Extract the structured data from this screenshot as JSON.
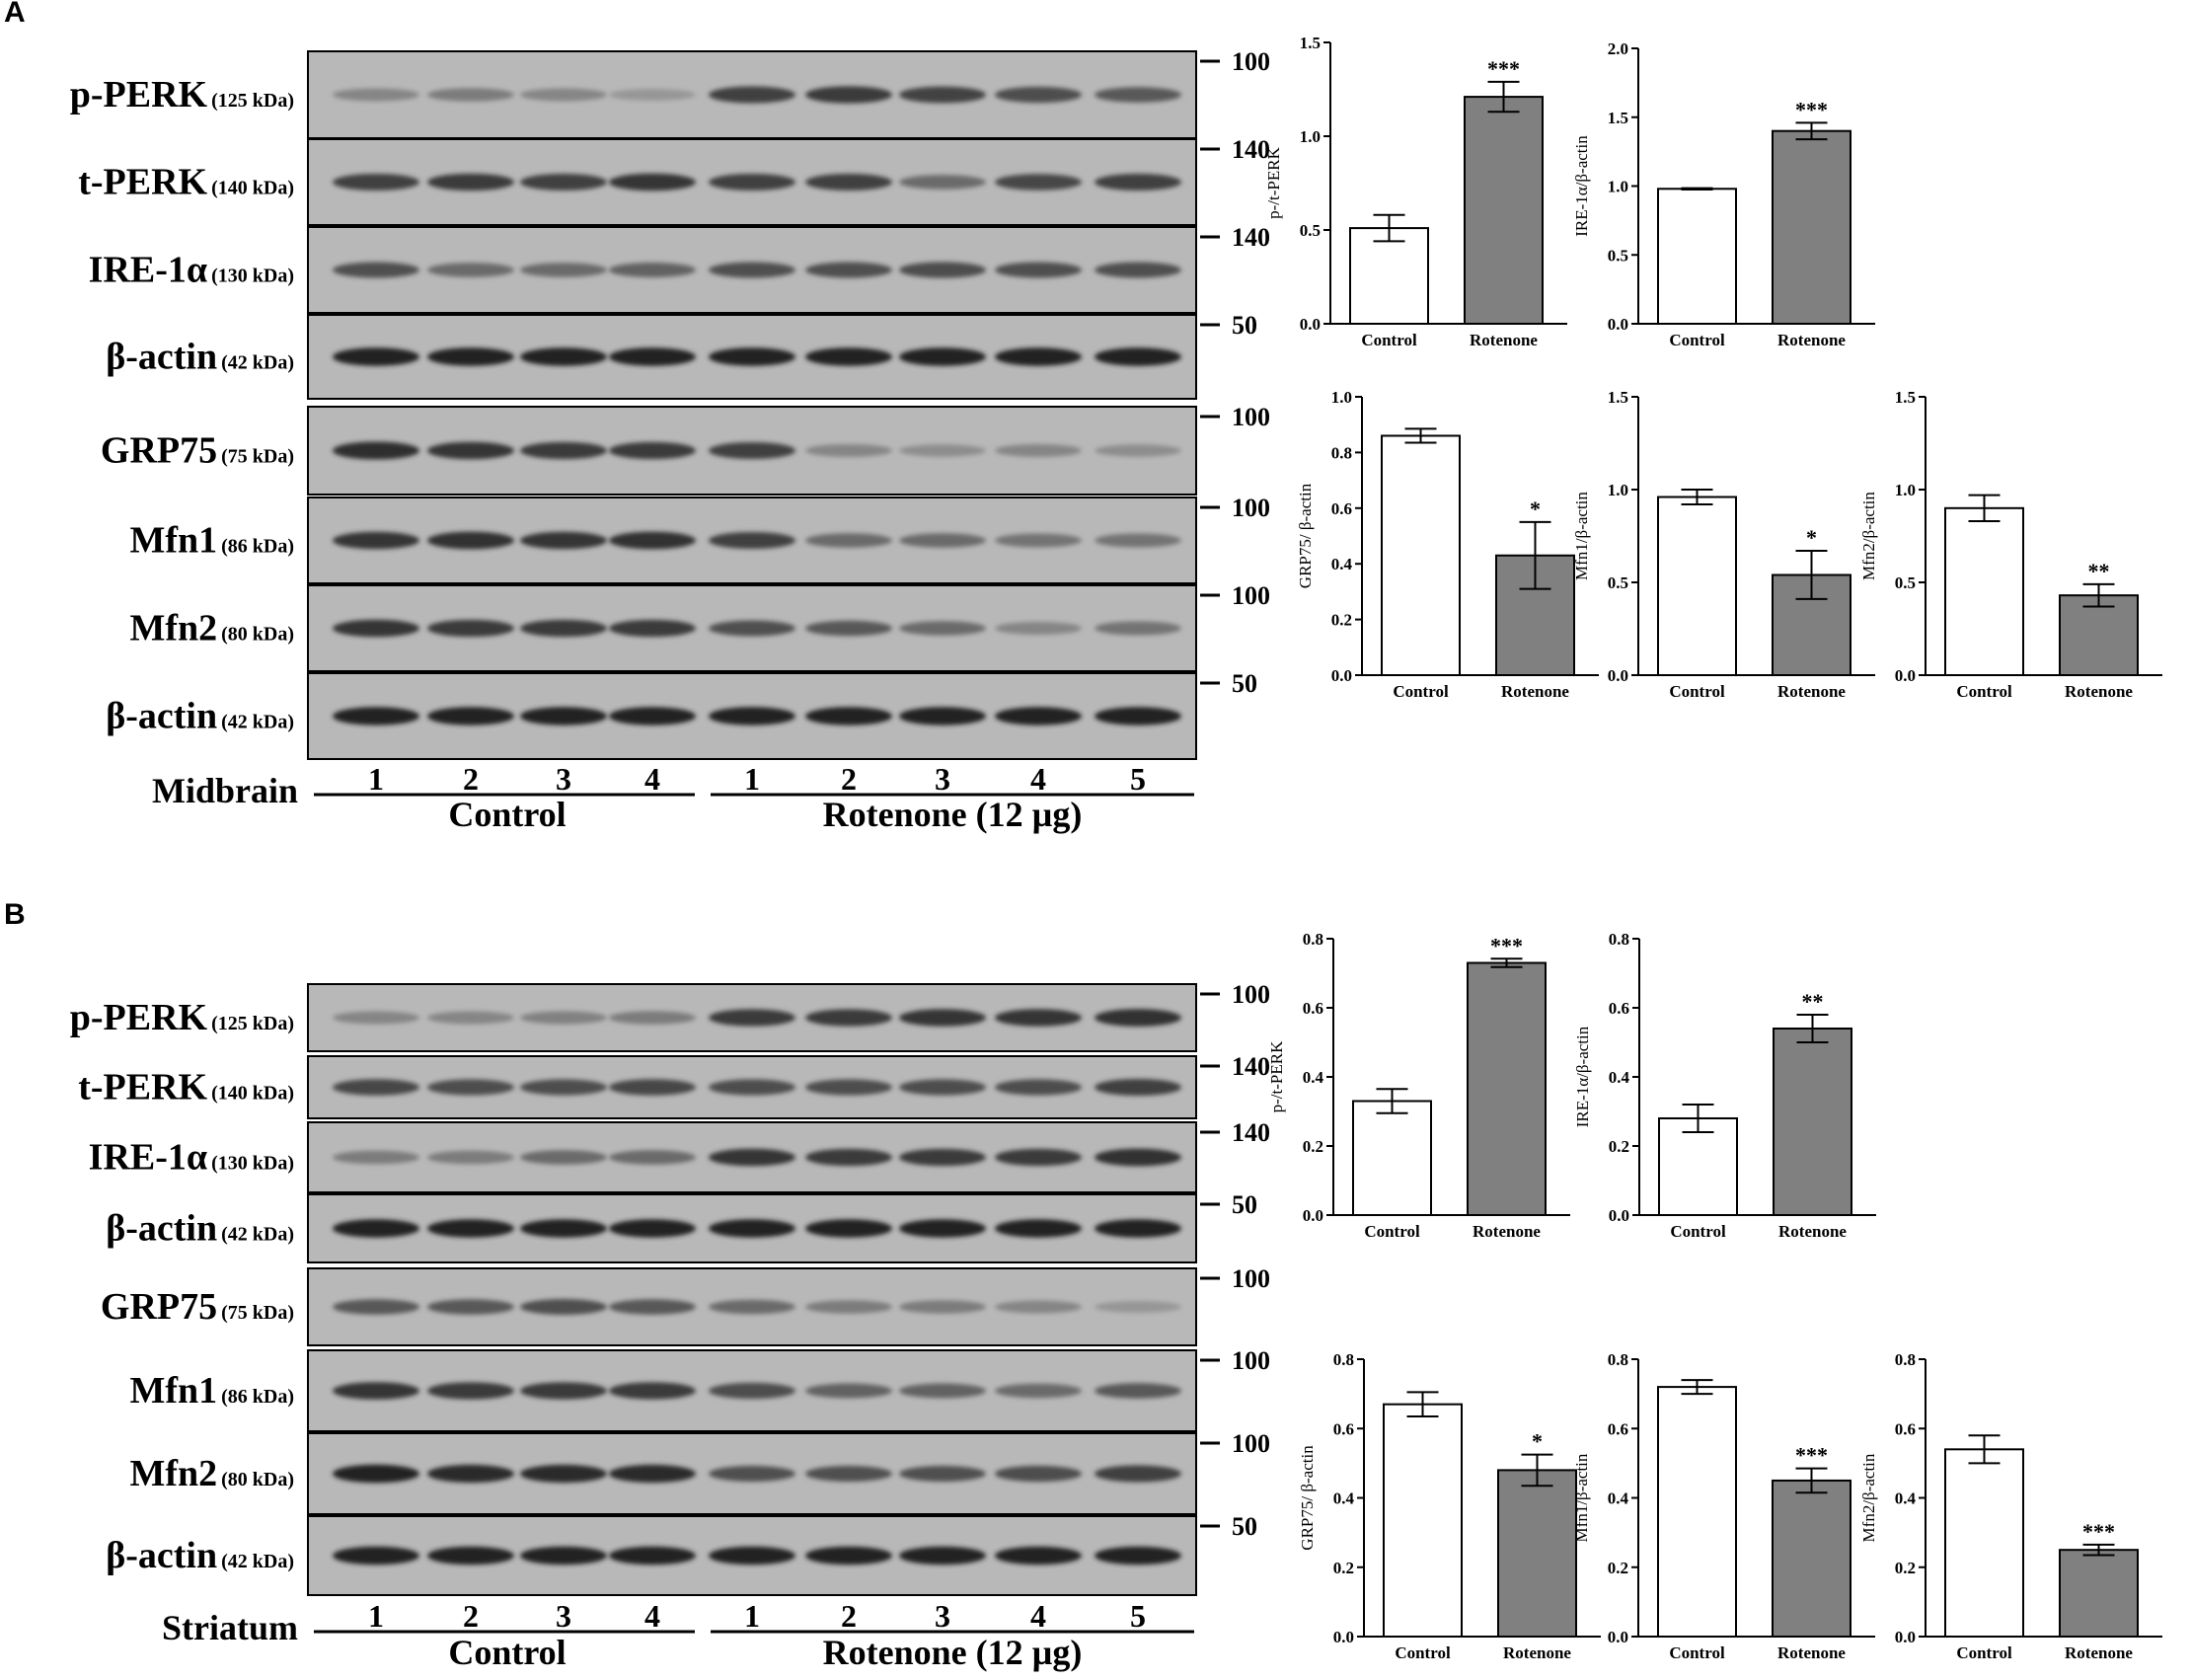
{
  "panels": [
    {
      "letter": "A",
      "region": "Midbrain",
      "groups": [
        "Control",
        "Rotenone (12 µg)"
      ],
      "lanes": [
        "1",
        "2",
        "3",
        "4",
        "1",
        "2",
        "3",
        "4",
        "5"
      ],
      "blots": [
        {
          "protein": "p-PERK",
          "kda": "(125 kDa)",
          "marker": "100",
          "intensity": [
            0.3,
            0.35,
            0.3,
            0.2,
            0.7,
            0.72,
            0.68,
            0.62,
            0.55
          ]
        },
        {
          "protein": "t-PERK",
          "kda": "(140 kDa)",
          "marker": "140",
          "intensity": [
            0.7,
            0.72,
            0.7,
            0.75,
            0.7,
            0.7,
            0.45,
            0.65,
            0.7
          ]
        },
        {
          "protein": "IRE-1α",
          "kda": "(130 kDa)",
          "marker": "140",
          "intensity": [
            0.6,
            0.45,
            0.45,
            0.5,
            0.6,
            0.6,
            0.62,
            0.6,
            0.6
          ]
        },
        {
          "protein": "β-actin",
          "kda": "(42 kDa)",
          "marker": "50",
          "intensity": [
            0.85,
            0.85,
            0.85,
            0.85,
            0.85,
            0.85,
            0.85,
            0.85,
            0.85
          ]
        },
        {
          "protein": "GRP75",
          "kda": "(75 kDa)",
          "marker": "100",
          "intensity": [
            0.8,
            0.75,
            0.72,
            0.72,
            0.7,
            0.3,
            0.25,
            0.3,
            0.25
          ]
        },
        {
          "protein": "Mfn1",
          "kda": "(86 kDa)",
          "marker": "100",
          "intensity": [
            0.75,
            0.78,
            0.75,
            0.78,
            0.7,
            0.45,
            0.45,
            0.4,
            0.4
          ]
        },
        {
          "protein": "Mfn2",
          "kda": "(80 kDa)",
          "marker": "100",
          "intensity": [
            0.75,
            0.72,
            0.72,
            0.72,
            0.6,
            0.55,
            0.45,
            0.3,
            0.4
          ]
        },
        {
          "protein": "β-actin",
          "kda": "(42 kDa)",
          "marker": "50",
          "intensity": [
            0.85,
            0.85,
            0.85,
            0.85,
            0.85,
            0.85,
            0.85,
            0.85,
            0.85
          ]
        }
      ]
    },
    {
      "letter": "B",
      "region": "Striatum",
      "groups": [
        "Control",
        "Rotenone (12 µg)"
      ],
      "lanes": [
        "1",
        "2",
        "3",
        "4",
        "1",
        "2",
        "3",
        "4",
        "5"
      ],
      "blots": [
        {
          "protein": "p-PERK",
          "kda": "(125 kDa)",
          "marker": "100",
          "intensity": [
            0.3,
            0.3,
            0.32,
            0.35,
            0.72,
            0.72,
            0.75,
            0.75,
            0.78
          ]
        },
        {
          "protein": "t-PERK",
          "kda": "(140 kDa)",
          "marker": "140",
          "intensity": [
            0.65,
            0.62,
            0.62,
            0.65,
            0.62,
            0.62,
            0.62,
            0.62,
            0.7
          ]
        },
        {
          "protein": "IRE-1α",
          "kda": "(130 kDa)",
          "marker": "140",
          "intensity": [
            0.35,
            0.35,
            0.45,
            0.45,
            0.75,
            0.72,
            0.72,
            0.72,
            0.78
          ]
        },
        {
          "protein": "β-actin",
          "kda": "(42 kDa)",
          "marker": "50",
          "intensity": [
            0.85,
            0.85,
            0.85,
            0.85,
            0.85,
            0.85,
            0.85,
            0.85,
            0.85
          ]
        },
        {
          "protein": "GRP75",
          "kda": "(75 kDa)",
          "marker": "100",
          "intensity": [
            0.55,
            0.55,
            0.6,
            0.55,
            0.45,
            0.35,
            0.35,
            0.3,
            0.2
          ]
        },
        {
          "protein": "Mfn1",
          "kda": "(86 kDa)",
          "marker": "100",
          "intensity": [
            0.75,
            0.72,
            0.72,
            0.72,
            0.62,
            0.5,
            0.5,
            0.45,
            0.55
          ]
        },
        {
          "protein": "Mfn2",
          "kda": "(80 kDa)",
          "marker": "100",
          "intensity": [
            0.85,
            0.82,
            0.82,
            0.82,
            0.6,
            0.6,
            0.6,
            0.62,
            0.7
          ]
        },
        {
          "protein": "β-actin",
          "kda": "(42 kDa)",
          "marker": "50",
          "intensity": [
            0.85,
            0.85,
            0.85,
            0.85,
            0.85,
            0.85,
            0.85,
            0.85,
            0.85
          ]
        }
      ]
    }
  ],
  "chart_data": [
    {
      "panel": "A",
      "type": "bar",
      "ylabel": "p-/t-PERK",
      "categories": [
        "Control",
        "Rotenone"
      ],
      "values": [
        0.51,
        1.21
      ],
      "errors": [
        0.07,
        0.08
      ],
      "ylim": [
        0,
        1.5
      ],
      "yticks": [
        "0.0",
        "0.5",
        "1.0",
        "1.5"
      ],
      "significance": "***",
      "colors": [
        "#ffffff",
        "#808080"
      ]
    },
    {
      "panel": "A",
      "type": "bar",
      "ylabel": "IRE-1α/β-actin",
      "categories": [
        "Control",
        "Rotenone"
      ],
      "values": [
        0.98,
        1.4
      ],
      "errors": [
        0.005,
        0.06
      ],
      "ylim": [
        0,
        2.0
      ],
      "yticks": [
        "0.0",
        "0.5",
        "1.0",
        "1.5",
        "2.0"
      ],
      "significance": "***",
      "colors": [
        "#ffffff",
        "#808080"
      ]
    },
    {
      "panel": "A",
      "type": "bar",
      "ylabel": "GRP75/ β-actin",
      "categories": [
        "Control",
        "Rotenone"
      ],
      "values": [
        0.86,
        0.43
      ],
      "errors": [
        0.025,
        0.12
      ],
      "ylim": [
        0,
        1.0
      ],
      "yticks": [
        "0.0",
        "0.2",
        "0.4",
        "0.6",
        "0.8",
        "1.0"
      ],
      "significance": "*",
      "colors": [
        "#ffffff",
        "#808080"
      ]
    },
    {
      "panel": "A",
      "type": "bar",
      "ylabel": "Mfn1/β-actin",
      "categories": [
        "Control",
        "Rotenone"
      ],
      "values": [
        0.96,
        0.54
      ],
      "errors": [
        0.04,
        0.13
      ],
      "ylim": [
        0,
        1.5
      ],
      "yticks": [
        "0.0",
        "0.5",
        "1.0",
        "1.5"
      ],
      "significance": "*",
      "colors": [
        "#ffffff",
        "#808080"
      ]
    },
    {
      "panel": "A",
      "type": "bar",
      "ylabel": "Mfn2/β-actin",
      "categories": [
        "Control",
        "Rotenone"
      ],
      "values": [
        0.9,
        0.43
      ],
      "errors": [
        0.07,
        0.06
      ],
      "ylim": [
        0,
        1.5
      ],
      "yticks": [
        "0.0",
        "0.5",
        "1.0",
        "1.5"
      ],
      "significance": "**",
      "colors": [
        "#ffffff",
        "#808080"
      ]
    },
    {
      "panel": "B",
      "type": "bar",
      "ylabel": "p-/t-PERK",
      "categories": [
        "Control",
        "Rotenone"
      ],
      "values": [
        0.33,
        0.73
      ],
      "errors": [
        0.035,
        0.012
      ],
      "ylim": [
        0,
        0.8
      ],
      "yticks": [
        "0.0",
        "0.2",
        "0.4",
        "0.6",
        "0.8"
      ],
      "significance": "***",
      "colors": [
        "#ffffff",
        "#808080"
      ]
    },
    {
      "panel": "B",
      "type": "bar",
      "ylabel": "IRE-1α/β-actin",
      "categories": [
        "Control",
        "Rotenone"
      ],
      "values": [
        0.28,
        0.54
      ],
      "errors": [
        0.04,
        0.04
      ],
      "ylim": [
        0,
        0.8
      ],
      "yticks": [
        "0.0",
        "0.2",
        "0.4",
        "0.6",
        "0.8"
      ],
      "significance": "**",
      "colors": [
        "#ffffff",
        "#808080"
      ]
    },
    {
      "panel": "B",
      "type": "bar",
      "ylabel": "GRP75/ β-actin",
      "categories": [
        "Control",
        "Rotenone"
      ],
      "values": [
        0.67,
        0.48
      ],
      "errors": [
        0.035,
        0.045
      ],
      "ylim": [
        0,
        0.8
      ],
      "yticks": [
        "0.0",
        "0.2",
        "0.4",
        "0.6",
        "0.8"
      ],
      "significance": "*",
      "colors": [
        "#ffffff",
        "#808080"
      ]
    },
    {
      "panel": "B",
      "type": "bar",
      "ylabel": "Mfn1/β-actin",
      "categories": [
        "Control",
        "Rotenone"
      ],
      "values": [
        0.72,
        0.45
      ],
      "errors": [
        0.02,
        0.035
      ],
      "ylim": [
        0,
        0.8
      ],
      "yticks": [
        "0.0",
        "0.2",
        "0.4",
        "0.6",
        "0.8"
      ],
      "significance": "***",
      "colors": [
        "#ffffff",
        "#808080"
      ]
    },
    {
      "panel": "B",
      "type": "bar",
      "ylabel": "Mfn2/β-actin",
      "categories": [
        "Control",
        "Rotenone"
      ],
      "values": [
        0.54,
        0.25
      ],
      "errors": [
        0.04,
        0.015
      ],
      "ylim": [
        0,
        0.8
      ],
      "yticks": [
        "0.0",
        "0.2",
        "0.4",
        "0.6",
        "0.8"
      ],
      "significance": "***",
      "colors": [
        "#ffffff",
        "#808080"
      ]
    }
  ]
}
